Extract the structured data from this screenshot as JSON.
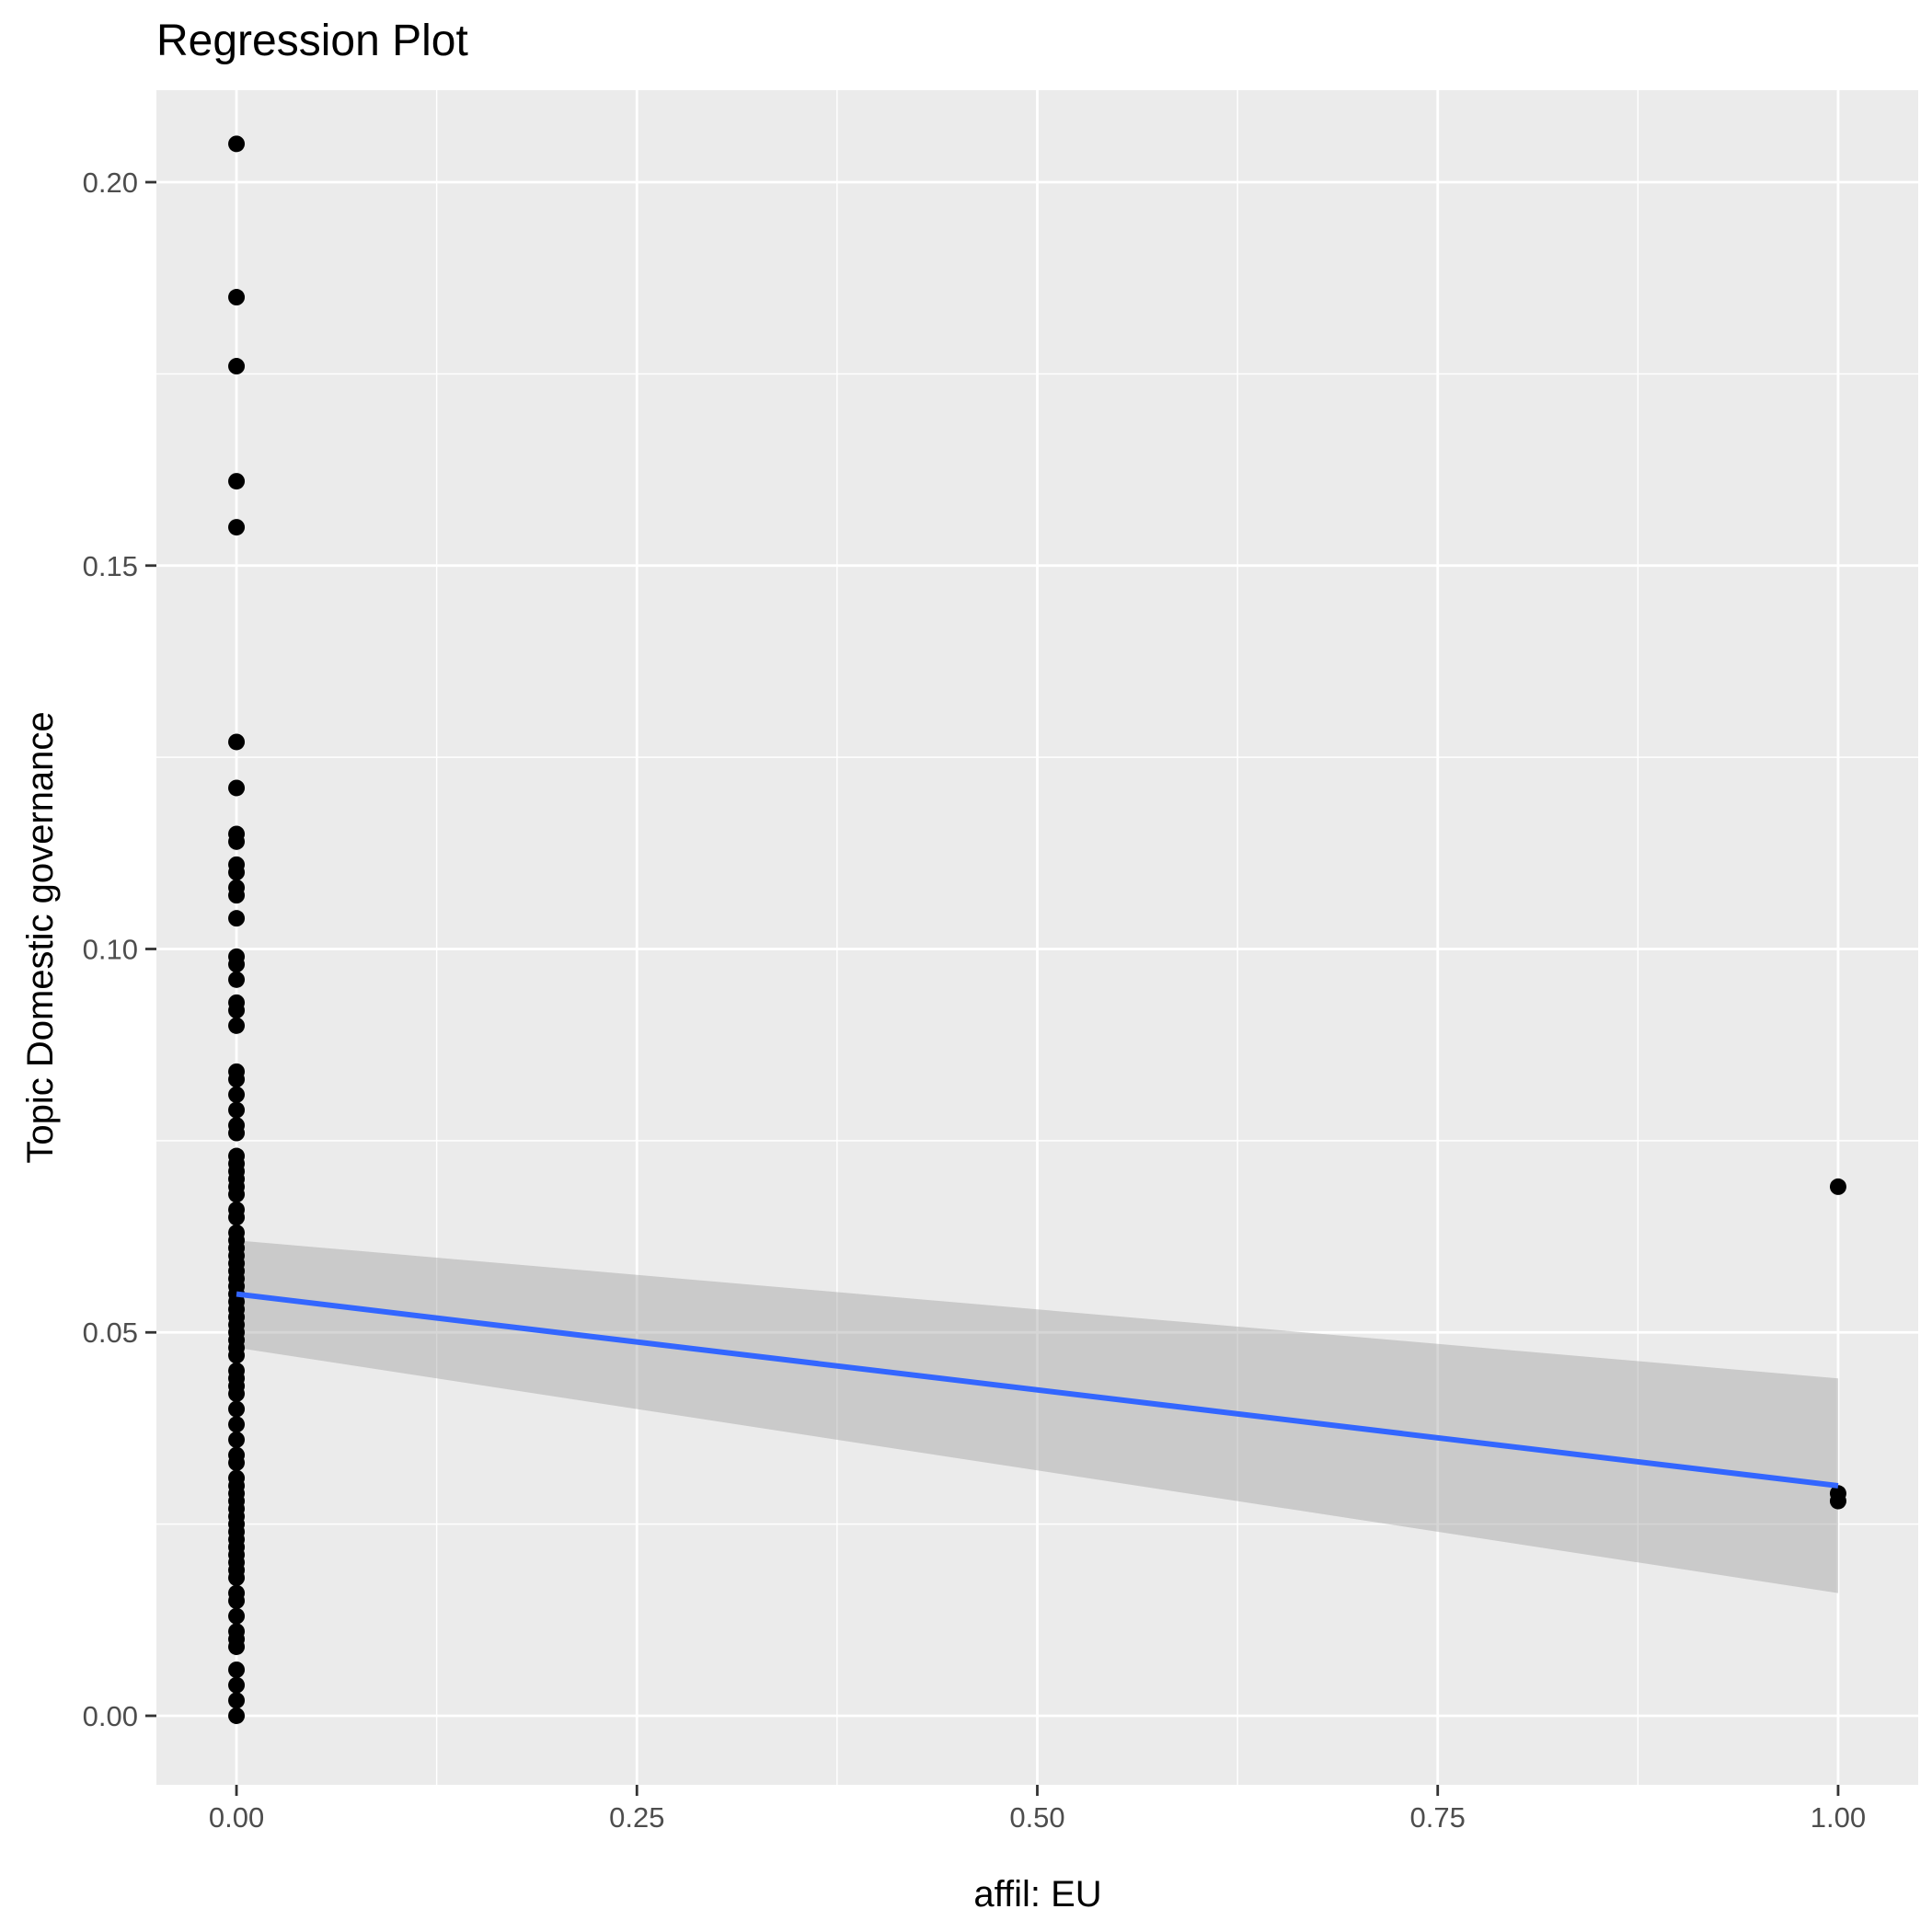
{
  "chart_data": {
    "type": "scatter",
    "title": "Regression Plot",
    "xlabel": "affil: EU",
    "ylabel": "Topic Domestic governance",
    "xlim": [
      -0.05,
      1.05
    ],
    "ylim": [
      -0.009,
      0.212
    ],
    "x_ticks": [
      0.0,
      0.25,
      0.5,
      0.75,
      1.0
    ],
    "x_tick_labels": [
      "0.00",
      "0.25",
      "0.50",
      "0.75",
      "1.00"
    ],
    "y_ticks": [
      0.0,
      0.05,
      0.1,
      0.15,
      0.2
    ],
    "y_tick_labels": [
      "0.00",
      "0.05",
      "0.10",
      "0.15",
      "0.20"
    ],
    "grid": true,
    "colors": {
      "panel": "#ebebeb",
      "grid": "#ffffff",
      "point": "#000000",
      "line": "#3366ff",
      "ribbon": "#999999"
    },
    "points": {
      "x": [
        0,
        0,
        0,
        0,
        0,
        0,
        0,
        0,
        0,
        0,
        0,
        0,
        0,
        0,
        0,
        0,
        0,
        0,
        0,
        0,
        0,
        0,
        0,
        0,
        0,
        0,
        0,
        0,
        0,
        0,
        0,
        0,
        0,
        0,
        0,
        0,
        0,
        0,
        0,
        0,
        0,
        0,
        0,
        0,
        0,
        0,
        0,
        0,
        0,
        0,
        0,
        0,
        0,
        0,
        0,
        0,
        0,
        0,
        0,
        0,
        0,
        0,
        0,
        0,
        0,
        0,
        0,
        0,
        0,
        0,
        0,
        0,
        0,
        0,
        0,
        0,
        0,
        0,
        0,
        0,
        0,
        0,
        0,
        0,
        1,
        1,
        1
      ],
      "y": [
        0.205,
        0.185,
        0.176,
        0.161,
        0.155,
        0.127,
        0.121,
        0.115,
        0.114,
        0.111,
        0.11,
        0.108,
        0.107,
        0.104,
        0.099,
        0.098,
        0.096,
        0.093,
        0.092,
        0.09,
        0.084,
        0.083,
        0.081,
        0.079,
        0.077,
        0.076,
        0.073,
        0.072,
        0.071,
        0.07,
        0.069,
        0.068,
        0.066,
        0.065,
        0.063,
        0.062,
        0.061,
        0.06,
        0.059,
        0.058,
        0.057,
        0.056,
        0.055,
        0.054,
        0.053,
        0.052,
        0.051,
        0.05,
        0.049,
        0.048,
        0.047,
        0.045,
        0.044,
        0.043,
        0.042,
        0.04,
        0.038,
        0.036,
        0.034,
        0.033,
        0.031,
        0.03,
        0.029,
        0.028,
        0.027,
        0.026,
        0.025,
        0.024,
        0.023,
        0.022,
        0.021,
        0.02,
        0.019,
        0.018,
        0.016,
        0.015,
        0.013,
        0.011,
        0.01,
        0.009,
        0.006,
        0.004,
        0.002,
        0.0,
        0.069,
        0.029,
        0.028
      ]
    },
    "fit": {
      "x": [
        0,
        1
      ],
      "y": [
        0.055,
        0.03
      ],
      "ci_low": [
        0.048,
        0.016
      ],
      "ci_high": [
        0.062,
        0.044
      ]
    }
  }
}
